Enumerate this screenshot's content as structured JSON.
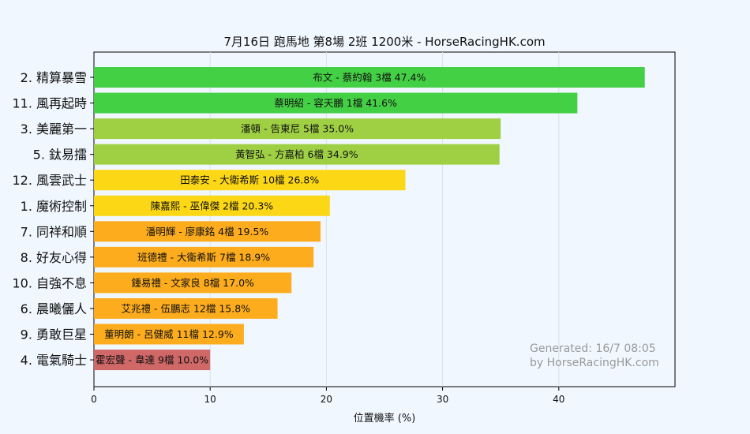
{
  "chart_data": {
    "type": "bar",
    "orientation": "horizontal",
    "title": "7月16日  跑馬地  第8場  2班  1200米 - HorseRacingHK.com",
    "xlabel": "位置機率 (%)",
    "ylabel": "",
    "xlim": [
      0,
      50
    ],
    "xticks": [
      "0",
      "10",
      "20",
      "30",
      "40"
    ],
    "grid": true,
    "categories": [
      "2. 精算暴雪",
      "11. 風再起時",
      "3. 美麗第一",
      "5. 鈦易擂",
      "12. 風雲武士",
      "1. 魔術控制",
      "7. 同祥和順",
      "8. 好友心得",
      "10. 自強不息",
      "6. 晨曦儷人",
      "9. 勇敢巨星",
      "4. 電氣騎士"
    ],
    "values": [
      47.4,
      41.6,
      35.0,
      34.9,
      26.8,
      20.3,
      19.5,
      18.9,
      17.0,
      15.8,
      12.9,
      10.0
    ],
    "bar_labels": [
      "布文 - 蔡約翰 3檔  47.4%",
      "蔡明紹 - 容天鵬 1檔  41.6%",
      "潘頓 - 告東尼 5檔  35.0%",
      "黃智弘 - 方嘉柏 6檔  34.9%",
      "田泰安 - 大衛希斯 10檔  26.8%",
      "陳嘉熙 - 巫偉傑 2檔  20.3%",
      "潘明輝 - 廖康銘 4檔  19.5%",
      "班德禮 - 大衛希斯 7檔  18.9%",
      "鍾易禮 - 文家良 8檔  17.0%",
      "艾兆禮 - 伍鵬志 12檔  15.8%",
      "董明朗 - 呂健威 11檔  12.9%",
      "霍宏聲 - 韋達 9檔  10.0%"
    ],
    "colors": [
      "#44d044",
      "#44d044",
      "#9fd044",
      "#9fd044",
      "#fcd716",
      "#fcd716",
      "#fdac1d",
      "#fdac1d",
      "#fdac1d",
      "#fdac1d",
      "#fdac1d",
      "#d06868"
    ],
    "watermark": [
      "Generated: 16/7 08:05",
      "by HorseRacingHK.com"
    ]
  }
}
